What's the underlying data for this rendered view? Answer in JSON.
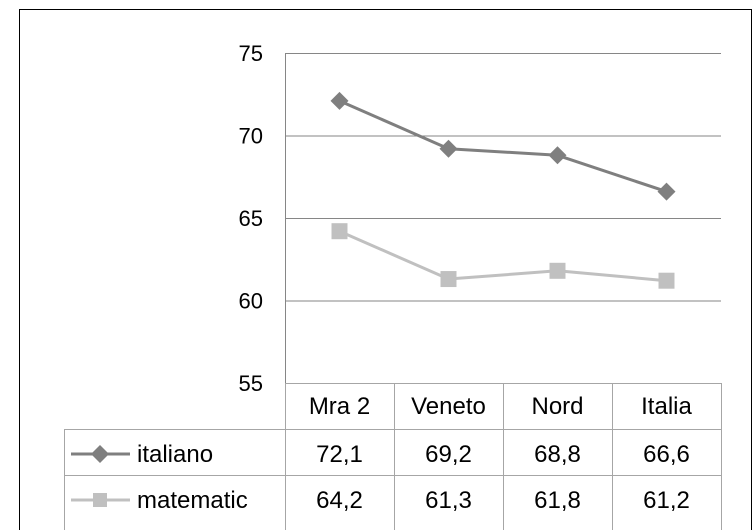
{
  "chart_data": {
    "type": "line",
    "categories": [
      "Mra 2",
      "Veneto",
      "Nord",
      "Italia"
    ],
    "series": [
      {
        "name": "italiano",
        "values": [
          72.1,
          69.2,
          68.8,
          66.6
        ],
        "display": [
          "72,1",
          "69,2",
          "68,8",
          "66,6"
        ],
        "color": "#7f7f7f",
        "marker": "diamond"
      },
      {
        "name": "matematic",
        "values": [
          64.2,
          61.3,
          61.8,
          61.2
        ],
        "display": [
          "64,2",
          "61,3",
          "61,8",
          "61,2"
        ],
        "color": "#c0c0c0",
        "marker": "square"
      }
    ],
    "yticks": [
      "75",
      "70",
      "65",
      "60",
      "55"
    ],
    "ylim": [
      55,
      75
    ],
    "grid": true,
    "legend": "data-table",
    "title": "",
    "xlabel": "",
    "ylabel": ""
  }
}
